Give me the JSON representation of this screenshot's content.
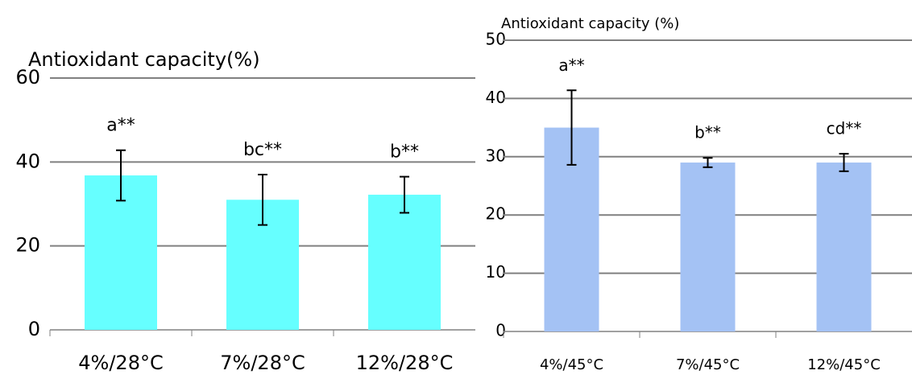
{
  "chart_data": [
    {
      "type": "bar",
      "title": "Antioxidant capacity(%)",
      "categories": [
        "4%/28°C",
        "7%/28°C",
        "12%/28°C"
      ],
      "values": [
        36.8,
        31,
        32.2
      ],
      "errors": [
        6,
        6,
        4.3
      ],
      "annotations": [
        "a**",
        "bc**",
        "b**"
      ],
      "color": "#66ffff",
      "ylim": [
        0,
        60
      ],
      "yticks": [
        0,
        20,
        40,
        60
      ],
      "grid": true
    },
    {
      "type": "bar",
      "title": "Antioxidant capacity (%)",
      "categories": [
        "4%/45°C",
        "7%/45°C",
        "12%/45°C"
      ],
      "values": [
        35,
        29,
        29
      ],
      "errors": [
        6.4,
        0.8,
        1.5
      ],
      "annotations": [
        "a**",
        "b**",
        "cd**"
      ],
      "color": "#a4c2f4",
      "ylim": [
        0,
        50
      ],
      "yticks": [
        0,
        10,
        20,
        30,
        40,
        50
      ],
      "grid": true
    }
  ]
}
